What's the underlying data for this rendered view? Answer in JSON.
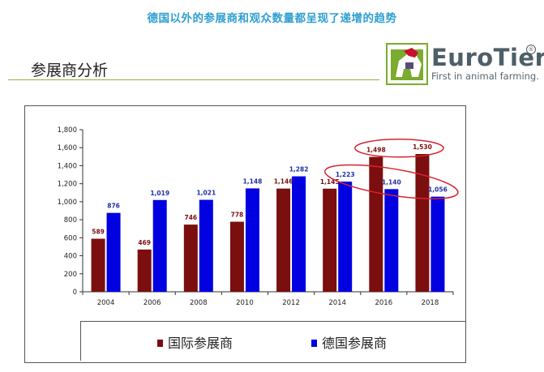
{
  "header": {
    "caption": "德国以外的参展商和观众数量都呈现了递增的趋势",
    "title": "参展商分析"
  },
  "logo": {
    "name": "EuroTier",
    "registered_mark": "®",
    "tagline": "First in animal farming.",
    "colors": {
      "green": "#7bab2f",
      "text": "#4d5f69"
    }
  },
  "chart_data": {
    "type": "bar",
    "categories": [
      "2004",
      "2006",
      "2008",
      "2010",
      "2012",
      "2014",
      "2016",
      "2018"
    ],
    "series": [
      {
        "name": "国际参展商",
        "color": "#7b0e0e",
        "label_color": "#7b0e0e",
        "values": [
          589,
          469,
          746,
          778,
          1146,
          1145,
          1498,
          1530
        ]
      },
      {
        "name": "德国参展商",
        "color": "#0000e0",
        "label_color": "#1f2fa8",
        "values": [
          876,
          1019,
          1021,
          1148,
          1282,
          1223,
          1140,
          1056
        ]
      }
    ],
    "value_labels": [
      [
        "589",
        "469",
        "746",
        "778",
        "1,146",
        "1,145",
        "1,498",
        "1,530"
      ],
      [
        "876",
        "1,019",
        "1,021",
        "1,148",
        "1,282",
        "1,223",
        "1,140",
        "1,056"
      ]
    ],
    "yticks": [
      0,
      200,
      400,
      600,
      800,
      1000,
      1200,
      1400,
      1600,
      1800
    ],
    "ytick_labels": [
      "0",
      "200",
      "400",
      "600",
      "800",
      "1,000",
      "1,200",
      "1,400",
      "1,600",
      "1,800"
    ],
    "ylim": [
      0,
      1800
    ],
    "legend_position": "bottom",
    "grid": false,
    "highlight_color": "#d9232e",
    "highlights": [
      {
        "series": 0,
        "from_category": "2016",
        "to_category": "2018"
      },
      {
        "series": 1,
        "from_category": "2014",
        "to_category": "2018"
      }
    ]
  }
}
